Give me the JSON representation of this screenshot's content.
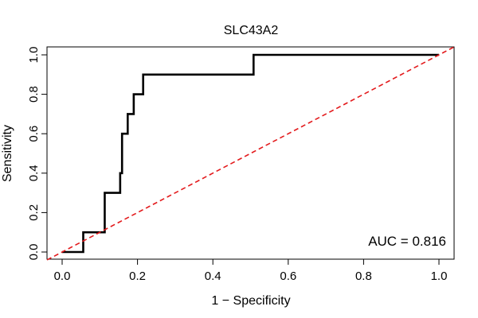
{
  "chart_data": {
    "type": "line",
    "title": "SLC43A2",
    "xlabel": "1 − Specificity",
    "ylabel": "Sensitivity",
    "xlim": [
      0.0,
      1.0
    ],
    "ylim": [
      0.0,
      1.0
    ],
    "x_ticks": [
      "0.0",
      "0.2",
      "0.4",
      "0.6",
      "0.8",
      "1.0"
    ],
    "y_ticks": [
      "0.0",
      "0.2",
      "0.4",
      "0.6",
      "0.8",
      "1.0"
    ],
    "grid": false,
    "series": [
      {
        "color": "#000000",
        "style": "solid",
        "points": [
          [
            0.0,
            0.0
          ],
          [
            0.056,
            0.0
          ],
          [
            0.056,
            0.1
          ],
          [
            0.113,
            0.1
          ],
          [
            0.113,
            0.3
          ],
          [
            0.154,
            0.3
          ],
          [
            0.154,
            0.4
          ],
          [
            0.159,
            0.4
          ],
          [
            0.159,
            0.6
          ],
          [
            0.174,
            0.6
          ],
          [
            0.174,
            0.7
          ],
          [
            0.19,
            0.7
          ],
          [
            0.19,
            0.8
          ],
          [
            0.215,
            0.8
          ],
          [
            0.215,
            0.9
          ],
          [
            0.508,
            0.9
          ],
          [
            0.508,
            1.0
          ],
          [
            1.0,
            1.0
          ]
        ]
      },
      {
        "color": "#e31a1c",
        "style": "dashed",
        "points": [
          [
            -0.04,
            -0.04
          ],
          [
            1.04,
            1.04
          ]
        ]
      }
    ],
    "annotation": "AUC = 0.816"
  }
}
